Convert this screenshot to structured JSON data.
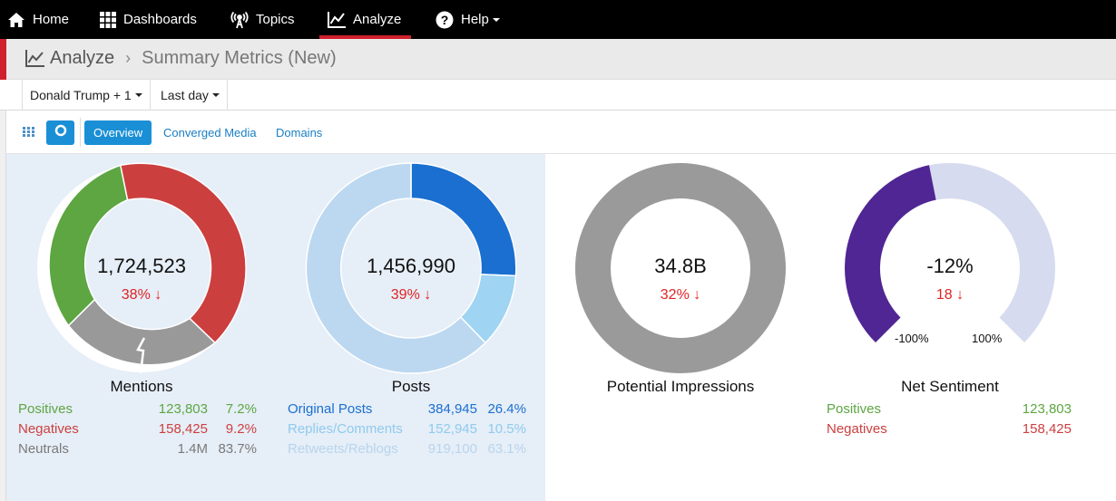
{
  "nav": {
    "items": [
      {
        "label": "Home",
        "icon": "home-icon"
      },
      {
        "label": "Dashboards",
        "icon": "grid-icon"
      },
      {
        "label": "Topics",
        "icon": "broadcast-icon"
      },
      {
        "label": "Analyze",
        "icon": "chart-line-icon",
        "active": true
      },
      {
        "label": "Help",
        "icon": "question-icon",
        "dropdown": true
      }
    ]
  },
  "breadcrumb": {
    "section": "Analyze",
    "page": "Summary Metrics (New)"
  },
  "filters": {
    "topic": "Donald Trump + 1",
    "range": "Last day"
  },
  "tabs": [
    "Overview",
    "Converged Media",
    "Domains"
  ],
  "metrics": {
    "mentions": {
      "title": "Mentions",
      "value": "1,724,523",
      "change": "38% ↓",
      "rows": [
        {
          "label": "Positives",
          "count": "123,803",
          "pct": "7.2%"
        },
        {
          "label": "Negatives",
          "count": "158,425",
          "pct": "9.2%"
        },
        {
          "label": "Neutrals",
          "count": "1.4M",
          "pct": "83.7%"
        }
      ]
    },
    "posts": {
      "title": "Posts",
      "value": "1,456,990",
      "change": "39% ↓",
      "rows": [
        {
          "label": "Original Posts",
          "count": "384,945",
          "pct": "26.4%"
        },
        {
          "label": "Replies/Comments",
          "count": "152,945",
          "pct": "10.5%"
        },
        {
          "label": "Retweets/Reblogs",
          "count": "919,100",
          "pct": "63.1%"
        }
      ]
    },
    "impressions": {
      "title": "Potential Impressions",
      "value": "34.8B",
      "change": "32% ↓"
    },
    "sentiment": {
      "title": "Net Sentiment",
      "value": "-12%",
      "change": "18 ↓",
      "min_label": "-100%",
      "max_label": "100%",
      "rows": [
        {
          "label": "Positives",
          "count": "123,803"
        },
        {
          "label": "Negatives",
          "count": "158,425"
        }
      ]
    }
  },
  "colors": {
    "positive": "#5da642",
    "negative": "#cc3f3f",
    "neutral": "#999999",
    "original": "#1a6fd1",
    "replies": "#9fd4f2",
    "retweets": "#bcd8f0",
    "impressions": "#9a9a9a",
    "sentiment_fill": "#4f2693",
    "sentiment_track": "#d6dbef",
    "accent": "#d0202d"
  }
}
